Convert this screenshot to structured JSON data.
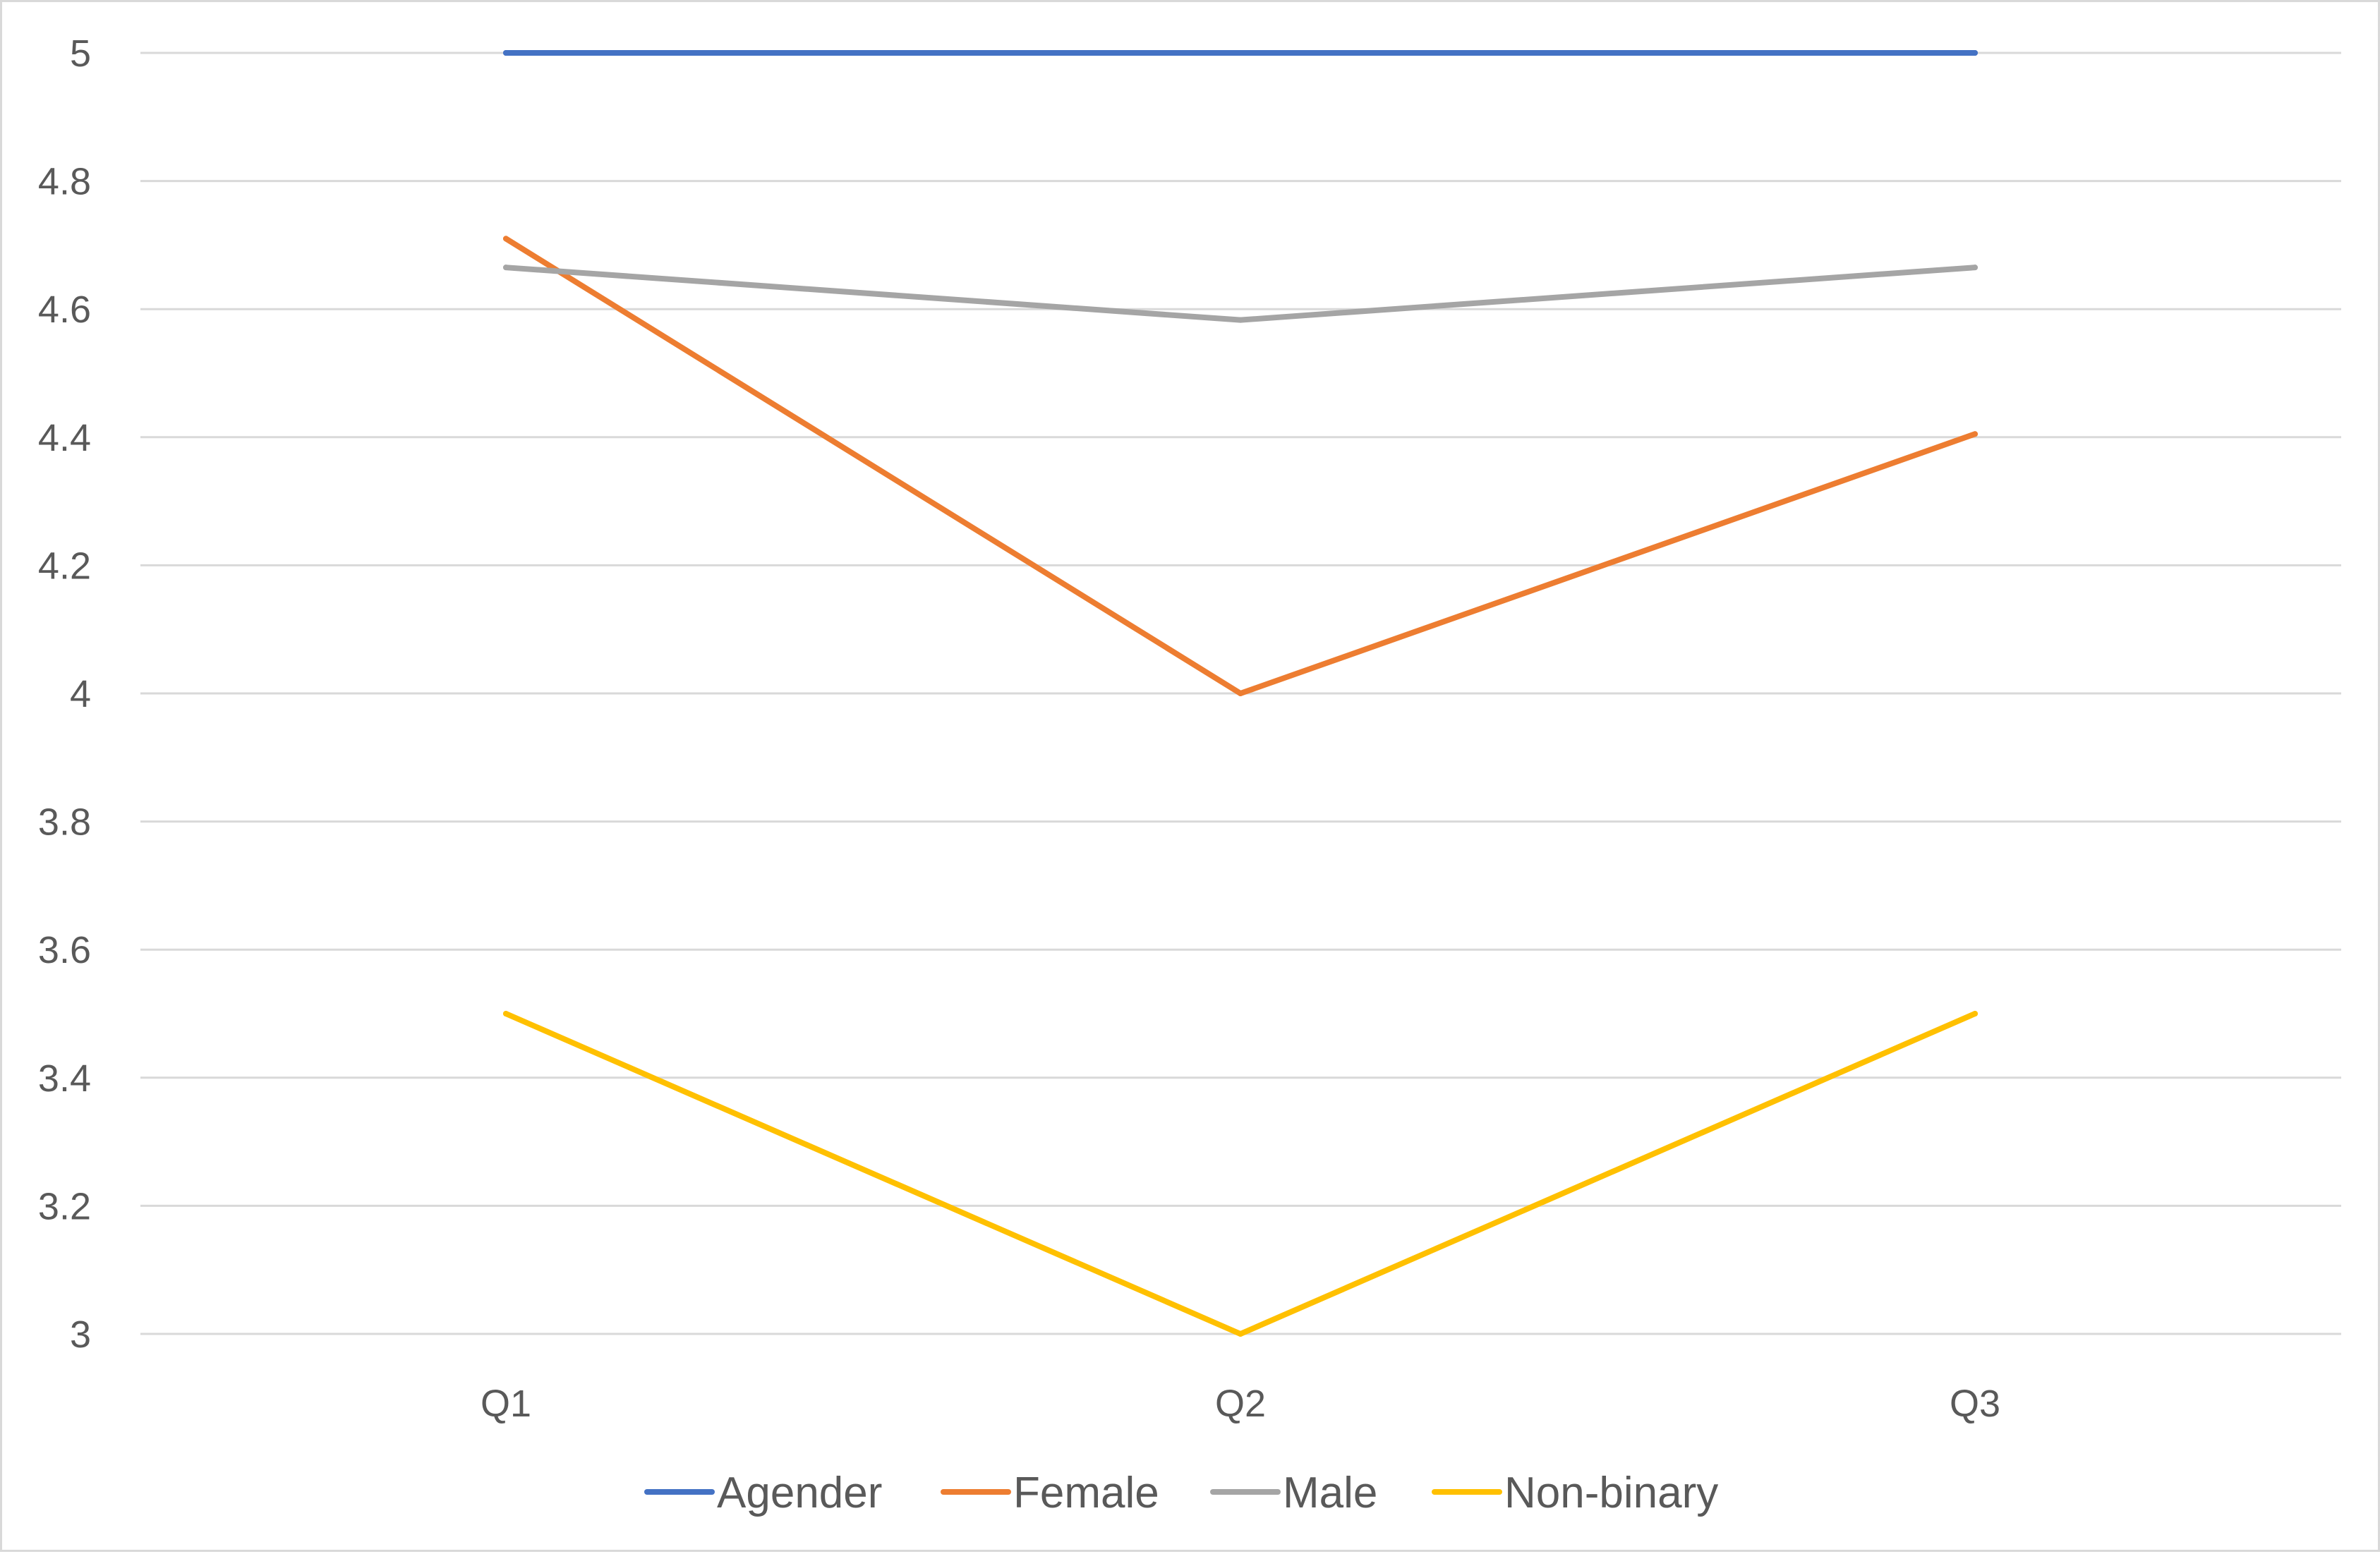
{
  "chart_data": {
    "type": "line",
    "title": "",
    "xlabel": "",
    "ylabel": "",
    "categories": [
      "Q1",
      "Q2",
      "Q3"
    ],
    "ylim": [
      3,
      5
    ],
    "yticks": [
      5,
      4.8,
      4.6,
      4.4,
      4.2,
      4,
      3.8,
      3.6,
      3.4,
      3.2,
      3
    ],
    "ytick_labels": [
      "5",
      "4.8",
      "4.6",
      "4.4",
      "4.2",
      "4",
      "3.8",
      "3.6",
      "3.4",
      "3.2",
      "3"
    ],
    "grid": true,
    "legend_position": "bottom",
    "series": [
      {
        "name": "Agender",
        "color": "#4472c4",
        "values": [
          5,
          5,
          5
        ]
      },
      {
        "name": "Female",
        "color": "#ed7d31",
        "values": [
          4.71,
          4.0,
          4.405
        ]
      },
      {
        "name": "Male",
        "color": "#a5a5a5",
        "values": [
          4.665,
          4.583,
          4.665
        ]
      },
      {
        "name": "Non-binary",
        "color": "#ffc000",
        "values": [
          3.5,
          3.0,
          3.5
        ]
      }
    ],
    "gridline_color": "#d9d9d9",
    "text_color": "#595959"
  }
}
